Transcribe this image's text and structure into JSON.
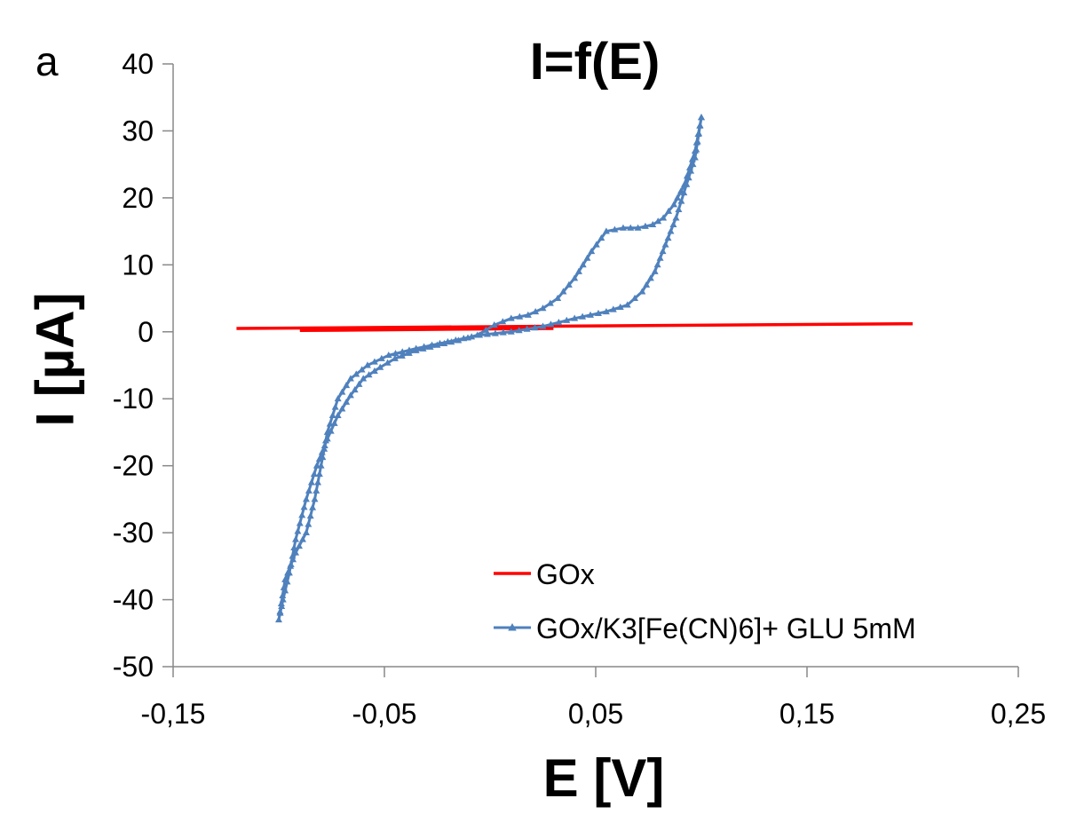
{
  "panel_label": "a",
  "chart_data": {
    "type": "line",
    "title": "I=f(E)",
    "xlabel": "E [V]",
    "ylabel": "I [µA]",
    "xlim": [
      -0.15,
      0.25
    ],
    "ylim": [
      -50,
      40
    ],
    "xticks": [
      -0.15,
      -0.05,
      0.05,
      0.15,
      0.25
    ],
    "xtick_labels": [
      "-0,15",
      "-0,05",
      "0,05",
      "0,15",
      "0,25"
    ],
    "yticks": [
      40,
      30,
      20,
      10,
      0,
      -10,
      -20,
      -30,
      -40,
      -50
    ],
    "ytick_labels": [
      "40",
      "30",
      "20",
      "10",
      "0",
      "-10",
      "-20",
      "-30",
      "-40",
      "-50"
    ],
    "grid": false,
    "legend_position": "bottom-right",
    "series": [
      {
        "name": "GOx",
        "color": "#ff0000",
        "marker": "none",
        "x": [
          -0.12,
          0.2
        ],
        "y": [
          0.5,
          1.2
        ],
        "x2": [
          -0.09,
          0.03
        ],
        "y2": [
          0.2,
          0.5
        ]
      },
      {
        "name": "GOx/K3[Fe(CN)6]+ GLU 5mM",
        "color": "#4f81bd",
        "marker": "triangle",
        "x": [
          0.1,
          0.097,
          0.092,
          0.087,
          0.082,
          0.077,
          0.07,
          0.063,
          0.055,
          0.048,
          0.04,
          0.032,
          0.025,
          0.018,
          0.01,
          0.002,
          -0.006,
          -0.015,
          -0.025,
          -0.035,
          -0.045,
          -0.052,
          -0.06,
          -0.066,
          -0.072,
          -0.077,
          -0.082,
          -0.087,
          -0.092,
          -0.095,
          -0.098,
          -0.1,
          -0.097,
          -0.092,
          -0.087,
          -0.083,
          -0.08,
          -0.077,
          -0.072,
          -0.066,
          -0.058,
          -0.048,
          -0.035,
          -0.02,
          -0.005,
          0.01,
          0.025,
          0.04,
          0.055,
          0.065,
          0.072,
          0.078,
          0.083,
          0.088,
          0.093,
          0.097,
          0.1
        ],
        "y": [
          32,
          27,
          22,
          19,
          17,
          16,
          15.5,
          15.5,
          15,
          12,
          8,
          5,
          3.5,
          2.5,
          2,
          1,
          -0.5,
          -1.3,
          -2,
          -2.8,
          -4,
          -5.3,
          -7,
          -9.5,
          -12.5,
          -16,
          -20,
          -25,
          -31,
          -36,
          -40,
          -43,
          -37,
          -33,
          -30,
          -25,
          -20,
          -15,
          -10,
          -7,
          -5,
          -3.5,
          -2.5,
          -1.5,
          -0.5,
          0,
          0.8,
          2,
          3,
          4,
          6,
          9,
          13,
          17,
          22,
          26,
          32
        ]
      }
    ]
  }
}
